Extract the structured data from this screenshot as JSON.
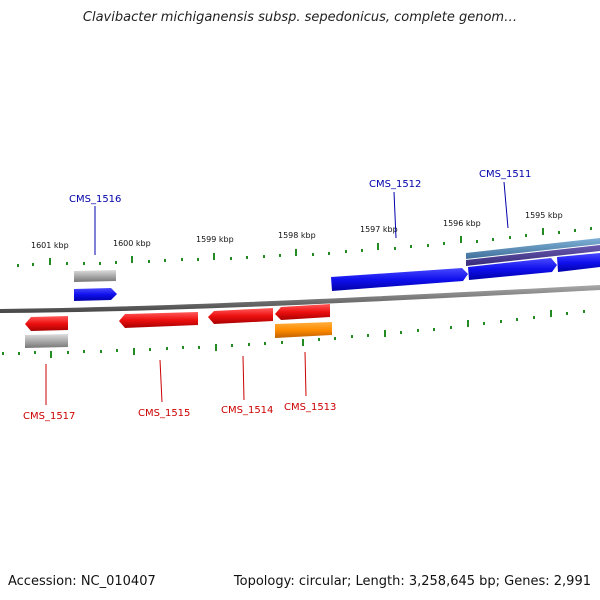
{
  "title": "Clavibacter michiganensis subsp. sepedonicus, complete genom…",
  "footer": {
    "accession": "Accession: NC_010407",
    "summary": "Topology: circular; Length: 3,258,645 bp; Genes: 2,991"
  },
  "colors": {
    "forward_gene": "#1a1aee",
    "reverse_gene": "#ee1a1a",
    "rna_gene": "#ff8c00",
    "pseudo": "#aaaaaa",
    "tick": "#228b22",
    "backbone": "#777777",
    "forward_label": "#0000aa",
    "reverse_label": "#cc0000"
  },
  "kbp_labels": [
    "1601 kbp",
    "1600 kbp",
    "1599 kbp",
    "1598 kbp",
    "1597 kbp",
    "1596 kbp",
    "1595 kbp"
  ],
  "gene_labels": {
    "forward": [
      "CMS_1516",
      "CMS_1512",
      "CMS_1511"
    ],
    "reverse": [
      "CMS_1517",
      "CMS_1515",
      "CMS_1514",
      "CMS_1513"
    ]
  }
}
